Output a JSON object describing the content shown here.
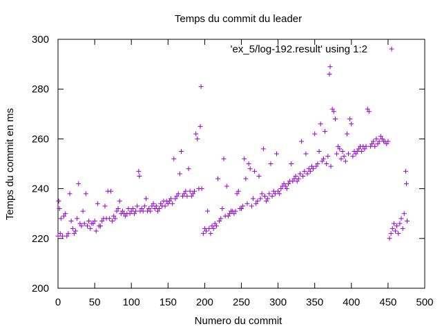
{
  "chart_data": {
    "type": "scatter",
    "title": "Temps du commit du leader",
    "xlabel": "Numero du commit",
    "ylabel": "Temps du commit en ms",
    "xlim": [
      0,
      500
    ],
    "ylim": [
      200,
      300
    ],
    "xticks": [
      "0",
      "50",
      "100",
      "150",
      "200",
      "250",
      "300",
      "350",
      "400",
      "450",
      "500"
    ],
    "yticks": [
      "200",
      "220",
      "240",
      "260",
      "280",
      "300"
    ],
    "grid": false,
    "legend_position": "top-right",
    "series": [
      {
        "name": "'ex_5/log-192.result' using 1:2",
        "color": "#9400d3",
        "marker": "plus",
        "points": [
          [
            0,
            221
          ],
          [
            1,
            235
          ],
          [
            2,
            232
          ],
          [
            3,
            222
          ],
          [
            4,
            228
          ],
          [
            6,
            221
          ],
          [
            8,
            229
          ],
          [
            10,
            230
          ],
          [
            12,
            221
          ],
          [
            14,
            222
          ],
          [
            16,
            238
          ],
          [
            18,
            227
          ],
          [
            20,
            224
          ],
          [
            22,
            222
          ],
          [
            24,
            223
          ],
          [
            26,
            228
          ],
          [
            28,
            242
          ],
          [
            30,
            226
          ],
          [
            32,
            225
          ],
          [
            34,
            231
          ],
          [
            36,
            226
          ],
          [
            38,
            238
          ],
          [
            40,
            225
          ],
          [
            42,
            227
          ],
          [
            44,
            224
          ],
          [
            46,
            226
          ],
          [
            48,
            226
          ],
          [
            50,
            227
          ],
          [
            52,
            223
          ],
          [
            54,
            234
          ],
          [
            56,
            225
          ],
          [
            58,
            225
          ],
          [
            60,
            227
          ],
          [
            62,
            228
          ],
          [
            64,
            233
          ],
          [
            66,
            228
          ],
          [
            68,
            239
          ],
          [
            70,
            228
          ],
          [
            72,
            239
          ],
          [
            74,
            227
          ],
          [
            76,
            229
          ],
          [
            78,
            228
          ],
          [
            80,
            231
          ],
          [
            82,
            232
          ],
          [
            84,
            235
          ],
          [
            86,
            230
          ],
          [
            88,
            231
          ],
          [
            90,
            230
          ],
          [
            92,
            229
          ],
          [
            94,
            230
          ],
          [
            96,
            232
          ],
          [
            98,
            230
          ],
          [
            100,
            231
          ],
          [
            102,
            232
          ],
          [
            104,
            230
          ],
          [
            106,
            231
          ],
          [
            108,
            233
          ],
          [
            110,
            247
          ],
          [
            111,
            245
          ],
          [
            112,
            231
          ],
          [
            114,
            232
          ],
          [
            116,
            231
          ],
          [
            118,
            233
          ],
          [
            120,
            236
          ],
          [
            122,
            231
          ],
          [
            124,
            232
          ],
          [
            126,
            231
          ],
          [
            128,
            233
          ],
          [
            130,
            234
          ],
          [
            132,
            232
          ],
          [
            134,
            233
          ],
          [
            136,
            231
          ],
          [
            138,
            232
          ],
          [
            140,
            234
          ],
          [
            142,
            233
          ],
          [
            144,
            235
          ],
          [
            146,
            233
          ],
          [
            148,
            235
          ],
          [
            150,
            234
          ],
          [
            152,
            235
          ],
          [
            154,
            236
          ],
          [
            156,
            234
          ],
          [
            158,
            252
          ],
          [
            160,
            236
          ],
          [
            162,
            237
          ],
          [
            164,
            238
          ],
          [
            166,
            246
          ],
          [
            168,
            255
          ],
          [
            170,
            237
          ],
          [
            172,
            238
          ],
          [
            174,
            239
          ],
          [
            176,
            237
          ],
          [
            178,
            248
          ],
          [
            180,
            239
          ],
          [
            182,
            237
          ],
          [
            184,
            238
          ],
          [
            186,
            239
          ],
          [
            188,
            262
          ],
          [
            190,
            260
          ],
          [
            192,
            240
          ],
          [
            194,
            265
          ],
          [
            195,
            281
          ],
          [
            196,
            240
          ],
          [
            198,
            222
          ],
          [
            200,
            224
          ],
          [
            202,
            223
          ],
          [
            204,
            231
          ],
          [
            206,
            224
          ],
          [
            208,
            222
          ],
          [
            210,
            225
          ],
          [
            212,
            224
          ],
          [
            214,
            226
          ],
          [
            216,
            225
          ],
          [
            218,
            244
          ],
          [
            220,
            227
          ],
          [
            222,
            228
          ],
          [
            224,
            232
          ],
          [
            226,
            252
          ],
          [
            228,
            229
          ],
          [
            230,
            241
          ],
          [
            232,
            229
          ],
          [
            234,
            230
          ],
          [
            236,
            231
          ],
          [
            238,
            231
          ],
          [
            240,
            230
          ],
          [
            242,
            231
          ],
          [
            244,
            238
          ],
          [
            246,
            239
          ],
          [
            248,
            232
          ],
          [
            250,
            232
          ],
          [
            252,
            233
          ],
          [
            254,
            252
          ],
          [
            256,
            244
          ],
          [
            258,
            234
          ],
          [
            260,
            250
          ],
          [
            262,
            248
          ],
          [
            264,
            233
          ],
          [
            266,
            236
          ],
          [
            268,
            247
          ],
          [
            270,
            234
          ],
          [
            272,
            235
          ],
          [
            274,
            245
          ],
          [
            276,
            236
          ],
          [
            278,
            238
          ],
          [
            280,
            256
          ],
          [
            282,
            237
          ],
          [
            284,
            235
          ],
          [
            286,
            236
          ],
          [
            288,
            238
          ],
          [
            290,
            250
          ],
          [
            292,
            237
          ],
          [
            294,
            239
          ],
          [
            296,
            238
          ],
          [
            298,
            254
          ],
          [
            300,
            239
          ],
          [
            302,
            238
          ],
          [
            304,
            240
          ],
          [
            306,
            241
          ],
          [
            308,
            242
          ],
          [
            310,
            241
          ],
          [
            312,
            240
          ],
          [
            314,
            242
          ],
          [
            316,
            243
          ],
          [
            318,
            250
          ],
          [
            320,
            243
          ],
          [
            322,
            244
          ],
          [
            324,
            245
          ],
          [
            326,
            243
          ],
          [
            328,
            244
          ],
          [
            330,
            246
          ],
          [
            332,
            259
          ],
          [
            334,
            245
          ],
          [
            336,
            247
          ],
          [
            338,
            254
          ],
          [
            340,
            246
          ],
          [
            342,
            248
          ],
          [
            344,
            247
          ],
          [
            346,
            249
          ],
          [
            348,
            248
          ],
          [
            350,
            262
          ],
          [
            352,
            249
          ],
          [
            354,
            250
          ],
          [
            356,
            255
          ],
          [
            358,
            266
          ],
          [
            360,
            251
          ],
          [
            362,
            252
          ],
          [
            364,
            263
          ],
          [
            366,
            250
          ],
          [
            368,
            253
          ],
          [
            370,
            286
          ],
          [
            371,
            289
          ],
          [
            372,
            249
          ],
          [
            374,
            272
          ],
          [
            376,
            271
          ],
          [
            378,
            268
          ],
          [
            380,
            254
          ],
          [
            382,
            257
          ],
          [
            384,
            256
          ],
          [
            386,
            252
          ],
          [
            388,
            255
          ],
          [
            390,
            253
          ],
          [
            392,
            251
          ],
          [
            394,
            262
          ],
          [
            396,
            254
          ],
          [
            398,
            268
          ],
          [
            400,
            266
          ],
          [
            402,
            253
          ],
          [
            404,
            255
          ],
          [
            406,
            254
          ],
          [
            408,
            255
          ],
          [
            410,
            256
          ],
          [
            412,
            257
          ],
          [
            414,
            255
          ],
          [
            416,
            257
          ],
          [
            418,
            256
          ],
          [
            420,
            257
          ],
          [
            422,
            272
          ],
          [
            424,
            271
          ],
          [
            426,
            257
          ],
          [
            428,
            258
          ],
          [
            430,
            259
          ],
          [
            432,
            257
          ],
          [
            434,
            260
          ],
          [
            436,
            258
          ],
          [
            438,
            259
          ],
          [
            440,
            261
          ],
          [
            442,
            260
          ],
          [
            444,
            259
          ],
          [
            446,
            259
          ],
          [
            448,
            258
          ],
          [
            450,
            259
          ],
          [
            452,
            220
          ],
          [
            454,
            222
          ],
          [
            456,
            224
          ],
          [
            458,
            226
          ],
          [
            460,
            223
          ],
          [
            462,
            225
          ],
          [
            464,
            222
          ],
          [
            466,
            226
          ],
          [
            468,
            228
          ],
          [
            470,
            224
          ],
          [
            472,
            230
          ],
          [
            474,
            247
          ],
          [
            475,
            242
          ],
          [
            476,
            227
          ]
        ]
      }
    ]
  }
}
